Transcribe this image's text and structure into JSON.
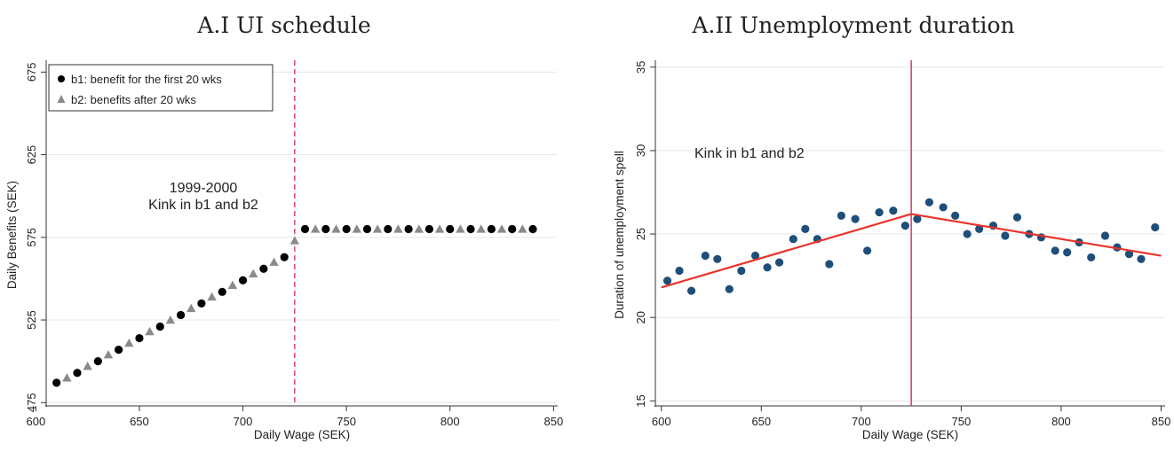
{
  "chart_data": [
    {
      "type": "scatter",
      "title": "A.I UI schedule",
      "xlabel": "Daily Wage (SEK)",
      "ylabel": "Daily Benefits (SEK)",
      "xlim": [
        605,
        852
      ],
      "ylim": [
        473,
        680
      ],
      "xticks": [
        600,
        650,
        700,
        750,
        800,
        850
      ],
      "yticks": [
        475,
        525,
        575,
        625,
        675
      ],
      "grid": true,
      "legend_position": "top-left",
      "kink_x": 725,
      "annotation": [
        "1999-2000",
        "Kink in b1 and b2"
      ],
      "series": [
        {
          "name": "b1: benefit for the first 20 wks",
          "marker": "circle",
          "color": "#000000",
          "x": [
            610,
            620,
            630,
            640,
            650,
            660,
            670,
            680,
            690,
            700,
            710,
            720,
            730,
            740,
            750,
            760,
            770,
            780,
            790,
            800,
            810,
            820,
            830,
            840
          ],
          "y": [
            487,
            493,
            500,
            507,
            514,
            521,
            528,
            535,
            542,
            549,
            556,
            563,
            580,
            580,
            580,
            580,
            580,
            580,
            580,
            580,
            580,
            580,
            580,
            580
          ]
        },
        {
          "name": "b2: benefits after 20 wks",
          "marker": "triangle",
          "color": "#8a8a8a",
          "x": [
            615,
            625,
            635,
            645,
            655,
            665,
            675,
            685,
            695,
            705,
            715,
            725,
            735,
            745,
            755,
            765,
            775,
            785,
            795,
            805,
            815,
            825,
            835
          ],
          "y": [
            490,
            497,
            504,
            511,
            518,
            525,
            532,
            539,
            546,
            553,
            560,
            573,
            580,
            580,
            580,
            580,
            580,
            580,
            580,
            580,
            580,
            580,
            580
          ]
        }
      ]
    },
    {
      "type": "scatter",
      "title": "A.II Unemployment duration",
      "xlabel": "Daily Wage (SEK)",
      "ylabel": "Duration of unemployment spell",
      "xlim": [
        597,
        852
      ],
      "ylim": [
        14.7,
        35.2
      ],
      "xticks": [
        600,
        650,
        700,
        750,
        800,
        850
      ],
      "yticks": [
        15,
        20,
        25,
        30,
        35
      ],
      "grid": true,
      "kink_x": 725,
      "annotation": [
        "Kink in b1 and b2"
      ],
      "series": [
        {
          "name": "",
          "marker": "circle",
          "color": "#1f4e79",
          "x": [
            603,
            609,
            615,
            622,
            628,
            634,
            640,
            647,
            653,
            659,
            666,
            672,
            678,
            684,
            690,
            697,
            703,
            709,
            716,
            722,
            728,
            734,
            741,
            747,
            753,
            759,
            766,
            772,
            778,
            784,
            790,
            797,
            803,
            809,
            815,
            822,
            828,
            834,
            840,
            847
          ],
          "y": [
            22.2,
            22.8,
            21.6,
            23.7,
            23.5,
            21.7,
            22.8,
            23.7,
            23.0,
            23.3,
            24.7,
            25.3,
            24.7,
            23.2,
            26.1,
            25.9,
            24.0,
            26.3,
            26.4,
            25.5,
            25.9,
            26.9,
            26.6,
            26.1,
            25.0,
            25.3,
            25.5,
            24.9,
            26.0,
            25.0,
            24.8,
            24.0,
            23.9,
            24.5,
            23.6,
            24.9,
            24.2,
            23.8,
            23.5,
            25.4
          ]
        },
        {
          "name": "",
          "type": "line",
          "color": "#e8332a",
          "x": [
            600,
            725,
            850
          ],
          "y": [
            21.8,
            26.2,
            23.7
          ]
        }
      ]
    }
  ]
}
